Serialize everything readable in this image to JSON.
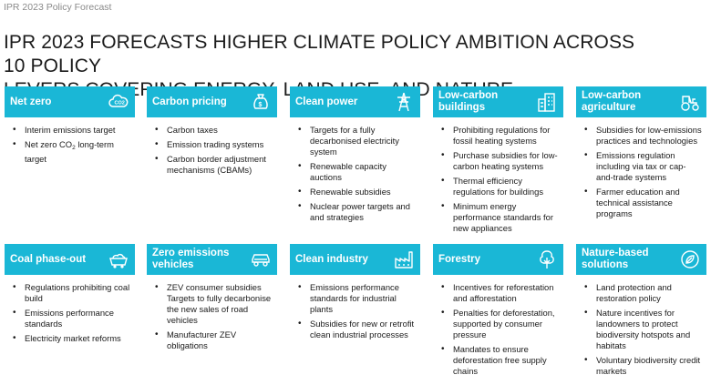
{
  "top_label": "IPR 2023 Policy Forecast",
  "headline": {
    "line1": "IPR 2023 FORECASTS HIGHER CLIMATE POLICY AMBITION ACROSS 10 POLICY",
    "line2": "LEVERS COVERING ENERGY, LAND USE, AND NATURE"
  },
  "colors": {
    "header_bg": "#1ab7d6",
    "header_text": "#ffffff"
  },
  "cards": [
    {
      "title": "Net zero",
      "icon": "co2-cloud-icon",
      "items": [
        "Interim emissions target",
        "Net zero CO",
        "2",
        " long-term target"
      ]
    },
    {
      "title": "Carbon pricing",
      "icon": "money-bag-icon",
      "items": [
        "Carbon taxes",
        "Emission trading systems",
        "Carbon border adjustment mechanisms (CBAMs)"
      ]
    },
    {
      "title": "Clean power",
      "icon": "power-pylon-icon",
      "items": [
        "Targets for a fully decarbonised electricity system",
        "Renewable capacity auctions",
        "Renewable subsidies",
        "Nuclear power targets and and strategies"
      ]
    },
    {
      "title": "Low-carbon buildings",
      "icon": "buildings-icon",
      "items": [
        "Prohibiting regulations for fossil heating systems",
        "Purchase subsidies for low-carbon heating systems",
        "Thermal efficiency regulations for buildings",
        "Minimum energy performance standards for new appliances"
      ]
    },
    {
      "title": "Low-carbon agriculture",
      "icon": "tractor-icon",
      "items": [
        "Subsidies for low-emissions practices and technologies",
        "Emissions regulation including via tax or cap-and-trade systems",
        "Farmer education and technical assistance programs"
      ]
    },
    {
      "title": "Coal phase-out",
      "icon": "coal-cart-icon",
      "items": [
        "Regulations prohibiting coal build",
        "Emissions performance standards",
        "Electricity market reforms"
      ]
    },
    {
      "title": "Zero emissions vehicles",
      "icon": "car-icon",
      "items": [
        "ZEV consumer subsidies Targets to fully decarbonise the new sales of road vehicles",
        "Manufacturer ZEV obligations"
      ]
    },
    {
      "title": "Clean industry",
      "icon": "factory-icon",
      "items": [
        "Emissions performance standards for industrial plants",
        "Subsidies for new or retrofit clean industrial processes"
      ]
    },
    {
      "title": "Forestry",
      "icon": "tree-icon",
      "items": [
        "Incentives for reforestation and afforestation",
        "Penalties for deforestation, supported by consumer pressure",
        "Mandates to ensure deforestation free supply chains"
      ]
    },
    {
      "title": "Nature-based solutions",
      "icon": "globe-leaf-icon",
      "items": [
        "Land protection and restoration policy",
        "Nature incentives for landowners to protect biodiversity hotspots and habitats",
        "Voluntary biodiversity credit markets"
      ]
    }
  ]
}
